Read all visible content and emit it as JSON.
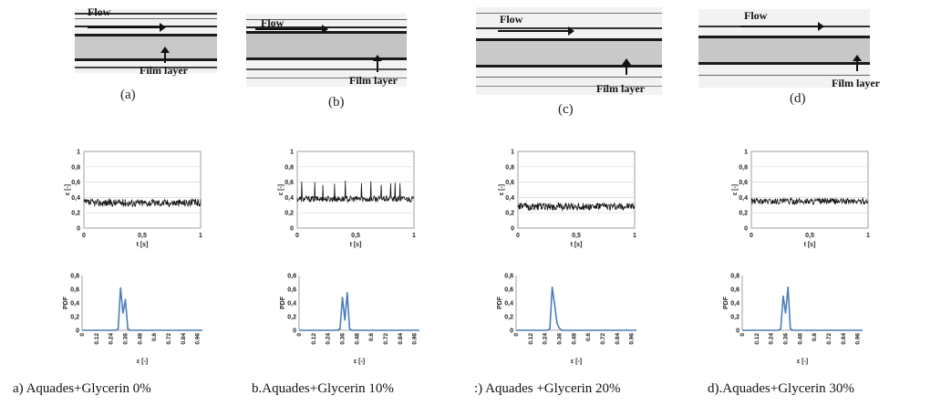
{
  "photos": [
    {
      "flow_label": "Flow",
      "film_label": "Film layer",
      "letter": "(a)"
    },
    {
      "flow_label": "Flow",
      "film_label": "Film layer",
      "letter": "(b)"
    },
    {
      "flow_label": "Flow",
      "film_label": "Film layer",
      "letter": "(c)"
    },
    {
      "flow_label": "Flow",
      "film_label": "Film layer",
      "letter": "(d)"
    }
  ],
  "captions": [
    "a)   Aquades+Glycerin 0%",
    "b.Aquades+Glycerin 10%",
    ":) Aquades +Glycerin 20%",
    "d).Aquades+Glycerin 30%"
  ],
  "colors": {
    "timeseries": "#111111",
    "pdf": "#4a7ebb",
    "grid": "#d9d9d9"
  },
  "chart_data": [
    {
      "type": "line",
      "id": "ts-a",
      "xlabel": "t [s]",
      "ylabel": "ε [-]",
      "xlim": [
        0,
        1
      ],
      "ylim": [
        0,
        1
      ],
      "x_ticks": [
        "0",
        "0,5",
        "1"
      ],
      "y_ticks": [
        "0",
        "0,2",
        "0,4",
        "0,6",
        "0,8",
        "1"
      ],
      "grid": "horizontal",
      "mean": 0.33,
      "noise": 0.05,
      "spikes": []
    },
    {
      "type": "line",
      "id": "ts-b",
      "xlabel": "t [s]",
      "ylabel": "ε [-]",
      "xlim": [
        0,
        1
      ],
      "ylim": [
        0,
        1
      ],
      "x_ticks": [
        "0",
        "0,5",
        "1"
      ],
      "y_ticks": [
        "0",
        "0,2",
        "0,4",
        "0,6",
        "0,8",
        "1"
      ],
      "grid": "horizontal",
      "mean": 0.38,
      "noise": 0.04,
      "spikes": [
        0.04,
        0.15,
        0.22,
        0.32,
        0.41,
        0.55,
        0.63,
        0.72,
        0.8,
        0.84,
        0.88
      ]
    },
    {
      "type": "line",
      "id": "ts-c",
      "xlabel": "t [s]",
      "ylabel": "ε [-]",
      "xlim": [
        0,
        1
      ],
      "ylim": [
        0,
        1
      ],
      "x_ticks": [
        "0",
        "0,5",
        "1"
      ],
      "y_ticks": [
        "0",
        "0,2",
        "0,4",
        "0,6",
        "0,8",
        "1"
      ],
      "grid": "horizontal",
      "mean": 0.28,
      "noise": 0.05,
      "spikes": []
    },
    {
      "type": "line",
      "id": "ts-d",
      "xlabel": "t [s]",
      "ylabel": "ε [-]",
      "xlim": [
        0,
        1
      ],
      "ylim": [
        0,
        1
      ],
      "x_ticks": [
        "0",
        "0,5",
        "1"
      ],
      "y_ticks": [
        "0",
        "0,2",
        "0,4",
        "0,6",
        "0,8",
        "1"
      ],
      "grid": "horizontal",
      "mean": 0.35,
      "noise": 0.04,
      "spikes": []
    },
    {
      "type": "line",
      "id": "pdf-a",
      "xlabel": "ε [-]",
      "ylabel": "PDF",
      "ylim": [
        0,
        0.8
      ],
      "x_ticks": [
        "0",
        "0.12",
        "0.24",
        "0.36",
        "0.48",
        "0.6",
        "0.72",
        "0.84",
        "0.96"
      ],
      "y_ticks": [
        "0",
        "0,2",
        "0,4",
        "0,6",
        "0,8"
      ],
      "x": [
        0,
        0.02,
        0.04,
        0.06,
        0.08,
        0.1,
        0.12,
        0.14,
        0.16,
        0.18,
        0.2,
        0.22,
        0.24,
        0.26,
        0.28,
        0.3,
        0.32,
        0.34,
        0.36,
        0.38,
        0.4,
        0.42,
        0.44,
        0.46,
        0.48,
        0.5,
        0.52,
        0.54,
        0.56,
        0.58,
        0.6,
        0.62,
        0.64,
        0.66,
        0.68,
        0.7,
        0.72,
        0.74,
        0.76,
        0.78,
        0.8,
        0.82,
        0.84,
        0.86,
        0.88,
        0.9,
        0.92,
        0.94,
        0.96,
        0.98,
        1.0
      ],
      "y": [
        0,
        0,
        0,
        0,
        0,
        0,
        0,
        0,
        0,
        0,
        0,
        0,
        0,
        0,
        0,
        0.02,
        0.62,
        0.25,
        0.45,
        0.02,
        0,
        0,
        0,
        0,
        0,
        0,
        0,
        0,
        0,
        0,
        0,
        0,
        0,
        0,
        0,
        0,
        0,
        0,
        0,
        0,
        0,
        0,
        0,
        0,
        0,
        0,
        0,
        0,
        0,
        0,
        0
      ]
    },
    {
      "type": "line",
      "id": "pdf-b",
      "xlabel": "ε [-]",
      "ylabel": "PDF",
      "ylim": [
        0,
        0.8
      ],
      "x_ticks": [
        "0",
        "0.12",
        "0.24",
        "0.36",
        "0.48",
        "0.6",
        "0.72",
        "0.84",
        "0.96"
      ],
      "y_ticks": [
        "0",
        "0,2",
        "0,4",
        "0,6",
        "0,8"
      ],
      "x": [
        0,
        0.02,
        0.04,
        0.06,
        0.08,
        0.1,
        0.12,
        0.14,
        0.16,
        0.18,
        0.2,
        0.22,
        0.24,
        0.26,
        0.28,
        0.3,
        0.32,
        0.34,
        0.36,
        0.38,
        0.4,
        0.42,
        0.44,
        0.46,
        0.48,
        0.5,
        0.52,
        0.54,
        0.56,
        0.58,
        0.6,
        0.62,
        0.64,
        0.66,
        0.68,
        0.7,
        0.72,
        0.74,
        0.76,
        0.78,
        0.8,
        0.82,
        0.84,
        0.86,
        0.88,
        0.9,
        0.92,
        0.94,
        0.96,
        0.98,
        1.0
      ],
      "y": [
        0,
        0,
        0,
        0,
        0,
        0,
        0,
        0,
        0,
        0,
        0,
        0,
        0,
        0,
        0,
        0,
        0,
        0.02,
        0.48,
        0.15,
        0.55,
        0.02,
        0,
        0,
        0,
        0,
        0,
        0,
        0,
        0,
        0,
        0,
        0,
        0,
        0,
        0,
        0,
        0,
        0,
        0,
        0,
        0,
        0,
        0,
        0,
        0,
        0,
        0,
        0,
        0,
        0
      ]
    },
    {
      "type": "line",
      "id": "pdf-c",
      "xlabel": "ε [-]",
      "ylabel": "PDF",
      "ylim": [
        0,
        0.8
      ],
      "x_ticks": [
        "0",
        "0.12",
        "0.24",
        "0.36",
        "0.48",
        "0.6",
        "0.72",
        "0.84",
        "0.96"
      ],
      "y_ticks": [
        "0",
        "0,2",
        "0,4",
        "0,6",
        "0,8"
      ],
      "x": [
        0,
        0.02,
        0.04,
        0.06,
        0.08,
        0.1,
        0.12,
        0.14,
        0.16,
        0.18,
        0.2,
        0.22,
        0.24,
        0.26,
        0.28,
        0.3,
        0.32,
        0.34,
        0.36,
        0.38,
        0.4,
        0.42,
        0.44,
        0.46,
        0.48,
        0.5,
        0.52,
        0.54,
        0.56,
        0.58,
        0.6,
        0.62,
        0.64,
        0.66,
        0.68,
        0.7,
        0.72,
        0.74,
        0.76,
        0.78,
        0.8,
        0.82,
        0.84,
        0.86,
        0.88,
        0.9,
        0.92,
        0.94,
        0.96,
        0.98,
        1.0
      ],
      "y": [
        0,
        0,
        0,
        0,
        0,
        0,
        0,
        0,
        0,
        0,
        0,
        0,
        0,
        0,
        0.02,
        0.63,
        0.38,
        0.1,
        0.03,
        0,
        0,
        0,
        0,
        0,
        0,
        0,
        0,
        0,
        0,
        0,
        0,
        0,
        0,
        0,
        0,
        0,
        0,
        0,
        0,
        0,
        0,
        0,
        0,
        0,
        0,
        0,
        0,
        0,
        0,
        0,
        0
      ]
    },
    {
      "type": "line",
      "id": "pdf-d",
      "xlabel": "ε [-]",
      "ylabel": "PDF",
      "ylim": [
        0,
        0.8
      ],
      "x_ticks": [
        "0",
        "0.12",
        "0.24",
        "0.36",
        "0.48",
        "0.6",
        "0.72",
        "0.84",
        "0.96"
      ],
      "y_ticks": [
        "0",
        "0,2",
        "0,4",
        "0,6",
        "0,8"
      ],
      "x": [
        0,
        0.02,
        0.04,
        0.06,
        0.08,
        0.1,
        0.12,
        0.14,
        0.16,
        0.18,
        0.2,
        0.22,
        0.24,
        0.26,
        0.28,
        0.3,
        0.32,
        0.34,
        0.36,
        0.38,
        0.4,
        0.42,
        0.44,
        0.46,
        0.48,
        0.5,
        0.52,
        0.54,
        0.56,
        0.58,
        0.6,
        0.62,
        0.64,
        0.66,
        0.68,
        0.7,
        0.72,
        0.74,
        0.76,
        0.78,
        0.8,
        0.82,
        0.84,
        0.86,
        0.88,
        0.9,
        0.92,
        0.94,
        0.96,
        0.98,
        1.0
      ],
      "y": [
        0,
        0,
        0,
        0,
        0,
        0,
        0,
        0,
        0,
        0,
        0,
        0,
        0,
        0,
        0,
        0,
        0.02,
        0.5,
        0.25,
        0.63,
        0.02,
        0,
        0,
        0,
        0,
        0,
        0,
        0,
        0,
        0,
        0,
        0,
        0,
        0,
        0,
        0,
        0,
        0,
        0,
        0,
        0,
        0,
        0,
        0,
        0,
        0,
        0,
        0,
        0,
        0,
        0
      ]
    }
  ]
}
